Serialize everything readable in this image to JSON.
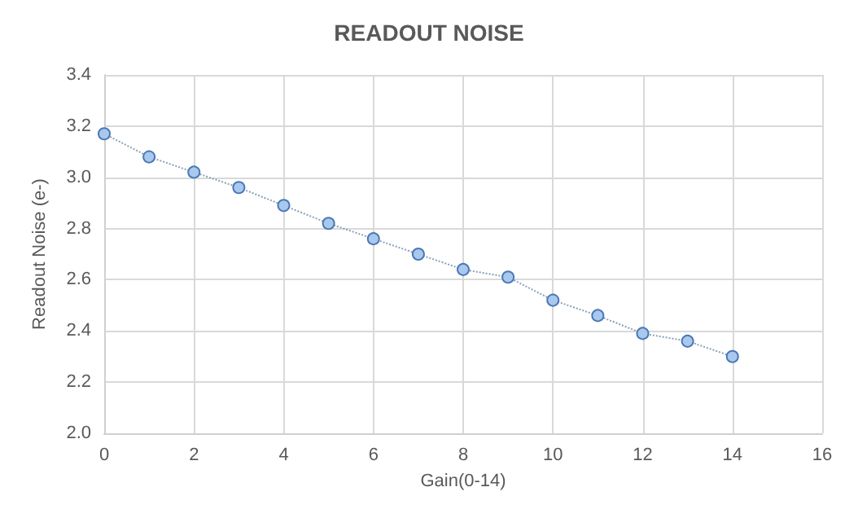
{
  "chart_data": {
    "type": "line",
    "title": "READOUT NOISE",
    "xlabel": "Gain(0-14)",
    "ylabel": "Readout Noise (e-)",
    "x": [
      0,
      1,
      2,
      3,
      4,
      5,
      6,
      7,
      8,
      9,
      10,
      11,
      12,
      13,
      14
    ],
    "series": [
      {
        "color": "#a9c8ee",
        "values": [
          3.17,
          3.08,
          3.02,
          2.96,
          2.89,
          2.82,
          2.76,
          2.7,
          2.64,
          2.61,
          2.52,
          2.46,
          2.39,
          2.36,
          2.3
        ]
      }
    ],
    "xlim": [
      0,
      16
    ],
    "xticks": [
      0,
      2,
      4,
      6,
      8,
      10,
      12,
      14,
      16
    ],
    "ylim": [
      2.0,
      3.4
    ],
    "yticks": [
      {
        "value": 2.0,
        "label": "2.0"
      },
      {
        "value": 2.2,
        "label": "2.2"
      },
      {
        "value": 2.4,
        "label": "2.4"
      },
      {
        "value": 2.6,
        "label": "2.6"
      },
      {
        "value": 2.8,
        "label": "2.8"
      },
      {
        "value": 3.0,
        "label": "3.0"
      },
      {
        "value": 3.2,
        "label": "3.2"
      },
      {
        "value": 3.4,
        "label": "3.4"
      }
    ],
    "grid": true,
    "marker": "circle",
    "line_style": "dotted"
  }
}
